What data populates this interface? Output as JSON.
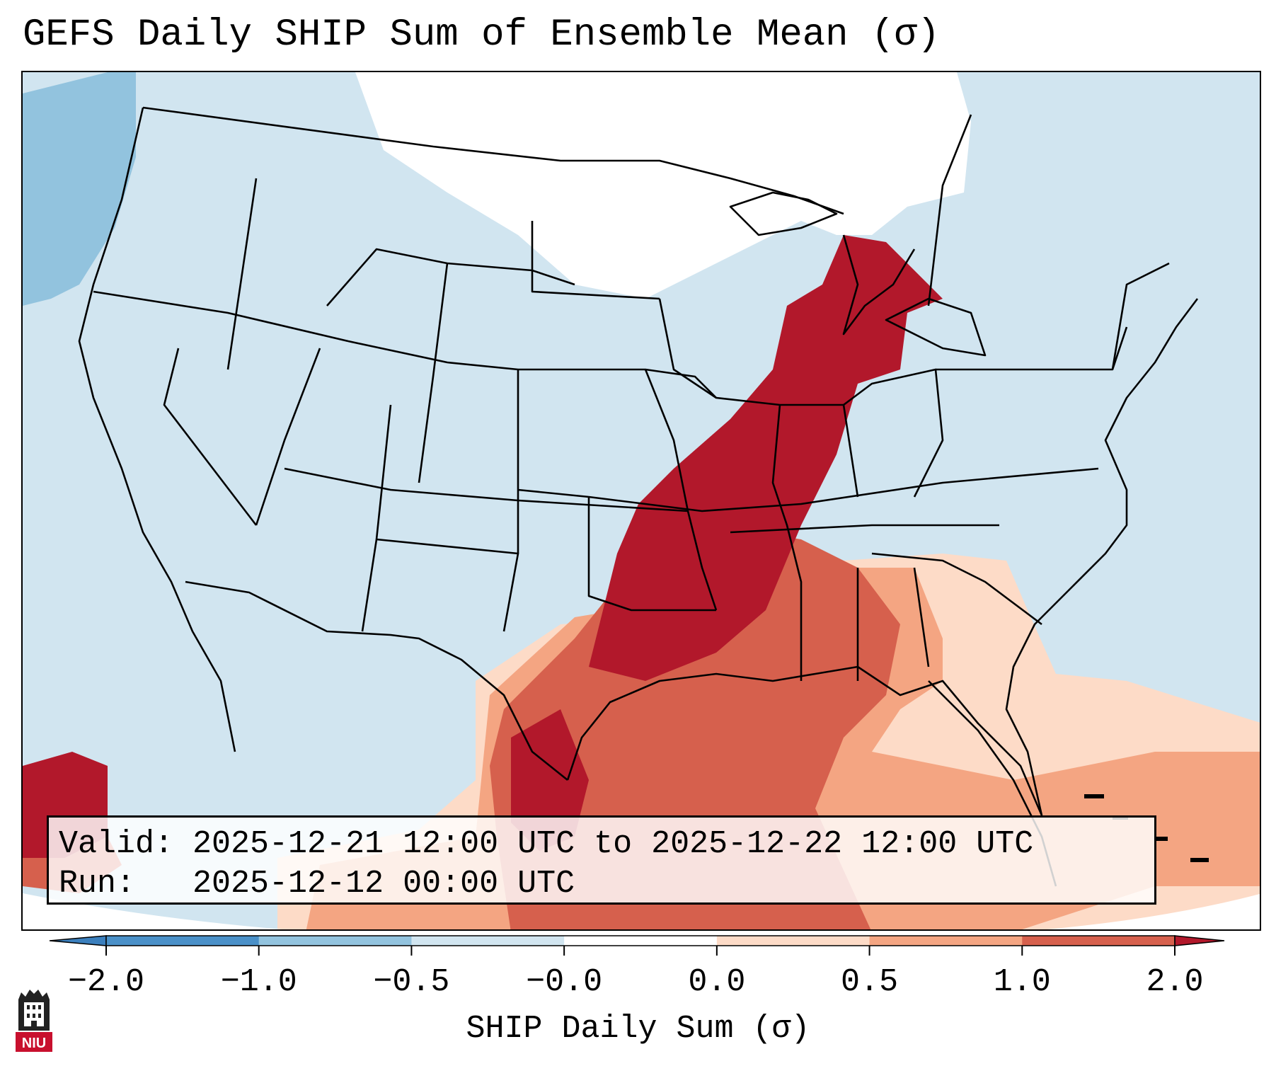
{
  "title": "GEFS Daily SHIP Sum of Ensemble Mean (σ)",
  "info": {
    "valid_line": "Valid: 2025-12-21 12:00 UTC to 2025-12-22 12:00 UTC",
    "run_line": "Run:   2025-12-12 00:00 UTC"
  },
  "colorbar": {
    "label": "SHIP Daily Sum (σ)",
    "tick_labels": [
      "−2.0",
      "−1.0",
      "−0.5",
      "−0.0",
      "0.0",
      "0.5",
      "1.0",
      "2.0"
    ],
    "bins": [
      {
        "range": "< -2.0",
        "color": "#3b7fbd"
      },
      {
        "range": "-2.0 to -1.0",
        "color": "#4a90c8"
      },
      {
        "range": "-1.0 to -0.5",
        "color": "#92c3de"
      },
      {
        "range": "-0.5 to 0",
        "color": "#d1e5f0"
      },
      {
        "range": "0",
        "color": "#ffffff"
      },
      {
        "range": "0 to 0.5",
        "color": "#fddbc7"
      },
      {
        "range": "0.5 to 1.0",
        "color": "#f4a582"
      },
      {
        "range": "1.0 to 2.0",
        "color": "#d6604d"
      },
      {
        "range": "> 2.0",
        "color": "#b2182b"
      }
    ]
  },
  "field_regions": [
    {
      "category": "-0.5 to 0",
      "area": "most of the western, central and southeastern US and surrounding oceans",
      "color": "#d1e5f0"
    },
    {
      "category": "-1.0 to -0.5",
      "area": "Pacific Northwest coast and offshore",
      "color": "#92c3de"
    },
    {
      "category": "0",
      "area": "northern plains, Minnesota, Wisconsin, southern Canada",
      "color": "#ffffff"
    },
    {
      "category": "> 2.0",
      "area": "Michigan, Illinois, Indiana, Ohio, Missouri, Arkansas, Kentucky, Tennessee, Oklahoma",
      "color": "#b2182b"
    },
    {
      "category": "1.0 to 2.0",
      "area": "Texas, Louisiana, Mississippi, Alabama, Gulf of Mexico",
      "color": "#d6604d"
    },
    {
      "category": "0.5 to 1.0",
      "area": "Gulf coast fringe, southeastern states",
      "color": "#f4a582"
    },
    {
      "category": "0 to 0.5",
      "area": "Georgia, Florida, western Atlantic",
      "color": "#fddbc7"
    }
  ],
  "logo": {
    "text": "NIU",
    "color": "#c8102e"
  }
}
